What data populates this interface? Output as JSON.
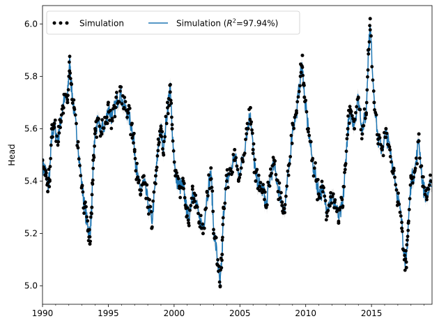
{
  "chart_data": {
    "type": "line",
    "title": "",
    "xlabel": "",
    "ylabel": "Head",
    "xlim": [
      1990.0,
      2019.6
    ],
    "ylim": [
      4.93,
      6.07
    ],
    "xticks": [
      1990,
      1995,
      2000,
      2005,
      2010,
      2015
    ],
    "yticks": [
      5.0,
      5.2,
      5.4,
      5.6,
      5.8,
      6.0
    ],
    "xtick_labels": [
      "1990",
      "1995",
      "2000",
      "2005",
      "2010",
      "2015"
    ],
    "ytick_labels": [
      "5.0",
      "5.2",
      "5.4",
      "5.6",
      "5.8",
      "6.0"
    ],
    "grid": false,
    "legend": {
      "placement": "upper-left",
      "entries": [
        {
          "label": "Simulation",
          "marker": "dots"
        },
        {
          "label_pre": "Simulation (",
          "label_italic": "R",
          "label_sup": "2",
          "label_post": "=97.94%)",
          "marker": "line"
        }
      ]
    },
    "colors": {
      "observed": "#000000",
      "simulated": "#1f77b4",
      "band": "#c8c8c8"
    },
    "series": [
      {
        "name": "Simulation",
        "style": "scatter",
        "x": [
          1990.0,
          1990.25,
          1990.4,
          1990.55,
          1990.7,
          1990.9,
          1991.2,
          1991.4,
          1991.6,
          1991.9,
          1992.05,
          1992.2,
          1992.4,
          1992.7,
          1993.0,
          1993.2,
          1993.45,
          1993.6,
          1993.75,
          1993.85,
          1994.0,
          1994.2,
          1994.5,
          1994.8,
          1995.0,
          1995.3,
          1995.6,
          1995.9,
          1996.2,
          1996.5,
          1996.8,
          1997.0,
          1997.2,
          1997.45,
          1997.7,
          1998.0,
          1998.3,
          1998.6,
          1998.8,
          1999.0,
          1999.2,
          1999.5,
          1999.7,
          1999.85,
          2000.1,
          2000.4,
          2000.7,
          2000.9,
          2001.1,
          2001.4,
          2001.6,
          2001.9,
          2002.2,
          2002.5,
          2002.8,
          2003.0,
          2003.3,
          2003.5,
          2003.65,
          2003.75,
          2004.0,
          2004.3,
          2004.6,
          2004.9,
          2005.2,
          2005.5,
          2005.8,
          2006.0,
          2006.2,
          2006.5,
          2006.8,
          2007.0,
          2007.3,
          2007.6,
          2007.9,
          2008.2,
          2008.4,
          2008.7,
          2009.0,
          2009.3,
          2009.6,
          2009.75,
          2009.9,
          2010.2,
          2010.5,
          2010.8,
          2011.0,
          2011.3,
          2011.6,
          2011.9,
          2012.2,
          2012.5,
          2012.8,
          2013.0,
          2013.2,
          2013.4,
          2013.7,
          2014.0,
          2014.3,
          2014.6,
          2014.75,
          2014.9,
          2015.2,
          2015.5,
          2015.8,
          2016.1,
          2016.4,
          2016.7,
          2017.0,
          2017.3,
          2017.5,
          2017.65,
          2017.8,
          2018.0,
          2018.3,
          2018.6,
          2018.9,
          2019.2,
          2019.5
        ],
        "y": [
          5.48,
          5.42,
          5.36,
          5.4,
          5.6,
          5.62,
          5.55,
          5.63,
          5.68,
          5.7,
          5.82,
          5.77,
          5.68,
          5.55,
          5.38,
          5.3,
          5.21,
          5.16,
          5.3,
          5.48,
          5.6,
          5.64,
          5.58,
          5.62,
          5.7,
          5.63,
          5.72,
          5.76,
          5.68,
          5.66,
          5.62,
          5.52,
          5.41,
          5.35,
          5.42,
          5.3,
          5.22,
          5.42,
          5.56,
          5.6,
          5.5,
          5.7,
          5.74,
          5.6,
          5.42,
          5.38,
          5.4,
          5.3,
          5.24,
          5.38,
          5.3,
          5.24,
          5.2,
          5.36,
          5.45,
          5.2,
          5.08,
          5.0,
          5.12,
          5.3,
          5.4,
          5.44,
          5.52,
          5.4,
          5.48,
          5.6,
          5.68,
          5.52,
          5.4,
          5.38,
          5.36,
          5.3,
          5.42,
          5.48,
          5.36,
          5.32,
          5.28,
          5.46,
          5.62,
          5.66,
          5.8,
          5.88,
          5.72,
          5.6,
          5.48,
          5.4,
          5.35,
          5.38,
          5.28,
          5.34,
          5.32,
          5.24,
          5.3,
          5.46,
          5.6,
          5.66,
          5.6,
          5.72,
          5.58,
          5.66,
          5.9,
          6.02,
          5.7,
          5.56,
          5.52,
          5.6,
          5.52,
          5.44,
          5.32,
          5.22,
          5.1,
          5.07,
          5.24,
          5.42,
          5.44,
          5.58,
          5.38,
          5.34,
          5.4
        ]
      },
      {
        "name": "Simulation (R²=97.94%)",
        "style": "line",
        "x": [
          1990.0,
          1990.25,
          1990.4,
          1990.55,
          1990.7,
          1990.9,
          1991.2,
          1991.4,
          1991.6,
          1991.9,
          1992.05,
          1992.2,
          1992.4,
          1992.7,
          1993.0,
          1993.2,
          1993.45,
          1993.6,
          1993.75,
          1993.85,
          1994.0,
          1994.2,
          1994.5,
          1994.8,
          1995.0,
          1995.3,
          1995.6,
          1995.9,
          1996.2,
          1996.5,
          1996.8,
          1997.0,
          1997.2,
          1997.45,
          1997.7,
          1998.0,
          1998.3,
          1998.6,
          1998.8,
          1999.0,
          1999.2,
          1999.5,
          1999.7,
          1999.85,
          2000.1,
          2000.4,
          2000.7,
          2000.9,
          2001.1,
          2001.4,
          2001.6,
          2001.9,
          2002.2,
          2002.5,
          2002.8,
          2003.0,
          2003.3,
          2003.5,
          2003.65,
          2003.75,
          2004.0,
          2004.3,
          2004.6,
          2004.9,
          2005.2,
          2005.5,
          2005.8,
          2006.0,
          2006.2,
          2006.5,
          2006.8,
          2007.0,
          2007.3,
          2007.6,
          2007.9,
          2008.2,
          2008.4,
          2008.7,
          2009.0,
          2009.3,
          2009.6,
          2009.75,
          2009.9,
          2010.2,
          2010.5,
          2010.8,
          2011.0,
          2011.3,
          2011.6,
          2011.9,
          2012.2,
          2012.5,
          2012.8,
          2013.0,
          2013.2,
          2013.4,
          2013.7,
          2014.0,
          2014.3,
          2014.6,
          2014.75,
          2014.9,
          2015.2,
          2015.5,
          2015.8,
          2016.1,
          2016.4,
          2016.7,
          2017.0,
          2017.3,
          2017.5,
          2017.65,
          2017.8,
          2018.0,
          2018.3,
          2018.6,
          2018.9,
          2019.2,
          2019.5
        ],
        "y": [
          5.46,
          5.44,
          5.38,
          5.42,
          5.58,
          5.6,
          5.56,
          5.64,
          5.7,
          5.72,
          5.86,
          5.76,
          5.66,
          5.54,
          5.38,
          5.3,
          5.22,
          5.2,
          5.3,
          5.46,
          5.58,
          5.62,
          5.6,
          5.62,
          5.68,
          5.64,
          5.7,
          5.74,
          5.68,
          5.66,
          5.6,
          5.52,
          5.42,
          5.36,
          5.4,
          5.32,
          5.24,
          5.4,
          5.54,
          5.6,
          5.52,
          5.68,
          5.76,
          5.6,
          5.42,
          5.38,
          5.38,
          5.3,
          5.26,
          5.36,
          5.32,
          5.26,
          5.22,
          5.34,
          5.44,
          5.22,
          5.1,
          5.0,
          5.12,
          5.28,
          5.4,
          5.44,
          5.5,
          5.42,
          5.48,
          5.58,
          5.66,
          5.52,
          5.42,
          5.38,
          5.36,
          5.3,
          5.42,
          5.46,
          5.38,
          5.32,
          5.28,
          5.44,
          5.6,
          5.66,
          5.8,
          5.84,
          5.72,
          5.6,
          5.48,
          5.4,
          5.36,
          5.36,
          5.3,
          5.34,
          5.32,
          5.26,
          5.3,
          5.44,
          5.6,
          5.66,
          5.62,
          5.72,
          5.6,
          5.66,
          5.88,
          5.99,
          5.72,
          5.56,
          5.52,
          5.58,
          5.52,
          5.44,
          5.34,
          5.24,
          5.12,
          5.09,
          5.24,
          5.4,
          5.44,
          5.56,
          5.38,
          5.34,
          5.38
        ]
      }
    ]
  }
}
